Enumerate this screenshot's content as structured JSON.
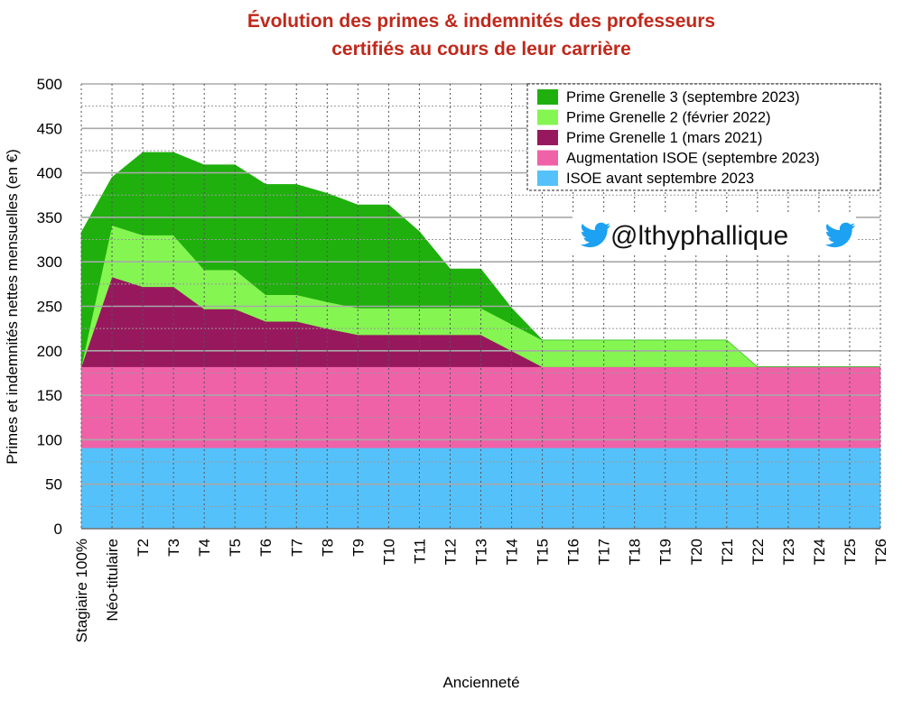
{
  "chart_data": {
    "type": "area",
    "stacked": true,
    "title": "Évolution des primes & indemnités des professeurs certifiés au cours de leur carrière",
    "title_lines": [
      "Évolution des primes & indemnités des professeurs",
      "certifiés au cours de leur carrière"
    ],
    "xlabel": "Ancienneté",
    "ylabel": "Primes et indemnités nettes mensuelles (en €)",
    "ylim": [
      0,
      500
    ],
    "yticks": [
      0,
      50,
      100,
      150,
      200,
      250,
      300,
      350,
      400,
      450,
      500
    ],
    "grid": true,
    "legend_position": "top-right",
    "categories": [
      "Stagiaire 100%",
      "Néo-titulaire",
      "T2",
      "T3",
      "T4",
      "T5",
      "T6",
      "T7",
      "T8",
      "T9",
      "T10",
      "T11",
      "T12",
      "T13",
      "T14",
      "T15",
      "T16",
      "T17",
      "T18",
      "T19",
      "T20",
      "T21",
      "T22",
      "T23",
      "T24",
      "T25",
      "T26"
    ],
    "series": [
      {
        "name": "ISOE avant septembre 2023",
        "color": "#55c1fa",
        "values": [
          91,
          91,
          91,
          91,
          91,
          91,
          91,
          91,
          91,
          91,
          91,
          91,
          91,
          91,
          91,
          91,
          91,
          91,
          91,
          91,
          91,
          91,
          91,
          91,
          91,
          91,
          91
        ]
      },
      {
        "name": "Augmentation ISOE (septembre 2023)",
        "color": "#ef62a8",
        "values": [
          91,
          91,
          91,
          91,
          91,
          91,
          91,
          91,
          91,
          91,
          91,
          91,
          91,
          91,
          91,
          91,
          91,
          91,
          91,
          91,
          91,
          91,
          91,
          91,
          91,
          91,
          91
        ]
      },
      {
        "name": "Prime Grenelle 1 (mars 2021)",
        "color": "#98185e",
        "values": [
          0,
          101,
          90,
          90,
          65,
          65,
          51,
          51,
          43,
          36,
          36,
          36,
          36,
          36,
          18,
          0,
          0,
          0,
          0,
          0,
          0,
          0,
          0,
          0,
          0,
          0,
          0
        ]
      },
      {
        "name": "Prime Grenelle 2 (février 2022)",
        "color": "#85f552",
        "values": [
          0,
          58,
          58,
          58,
          44,
          44,
          30,
          30,
          30,
          30,
          30,
          30,
          30,
          30,
          30,
          30,
          30,
          30,
          30,
          30,
          30,
          30,
          0,
          0,
          0,
          0,
          0
        ]
      },
      {
        "name": "Prime Grenelle 3 (septembre 2023)",
        "color": "#1fb00d",
        "values": [
          151,
          54,
          93,
          93,
          118,
          118,
          124,
          124,
          122,
          116,
          116,
          86,
          44,
          44,
          18,
          0,
          0,
          0,
          0,
          0,
          0,
          0,
          0,
          0,
          0,
          0,
          0
        ]
      }
    ]
  },
  "watermark": {
    "handle": "@lthyphallique",
    "icon": "twitter-bird-icon",
    "icon_color": "#1da1f2"
  }
}
